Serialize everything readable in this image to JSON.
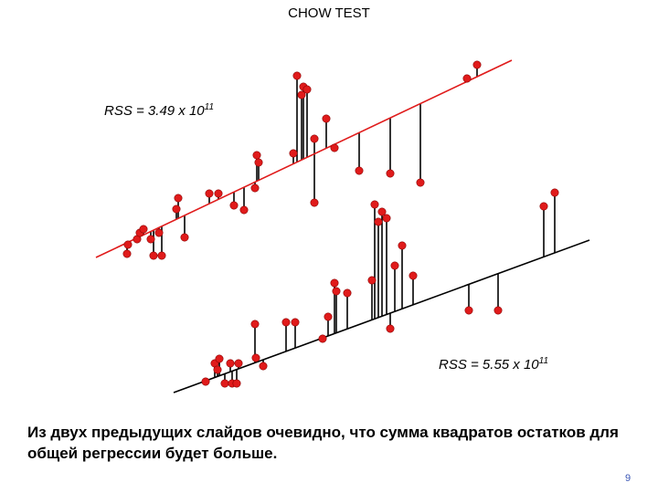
{
  "title": "CHOW TEST",
  "rss_top": {
    "prefix": "RSS = 3.49 x 10",
    "exponent": "11"
  },
  "rss_bottom": {
    "prefix": "RSS = 5.55 x 10",
    "exponent": "11"
  },
  "conclusion": "Из двух предыдущих слайдов очевидно, что сумма квадратов остатков для общей регрессии будет больше.",
  "page_number": "9",
  "colors": {
    "point": "#e01b1b",
    "pooled_line": "#e01b1b",
    "segment_line": "#000000"
  },
  "chart_data": [
    {
      "type": "scatter",
      "description_note": "pooled regression with residual lines",
      "series": [
        {
          "points": [
            [
              140,
              268
            ],
            [
              139,
              278
            ],
            [
              150,
              262
            ],
            [
              153,
              255
            ],
            [
              157,
              251
            ],
            [
              165,
              262
            ],
            [
              168,
              280
            ],
            [
              174,
              255
            ],
            [
              177,
              280
            ],
            [
              195,
              217
            ],
            [
              193,
              229
            ],
            [
              202,
              260
            ],
            [
              229,
              212
            ],
            [
              239,
              212
            ],
            [
              256,
              225
            ],
            [
              267,
              230
            ],
            [
              279,
              206
            ],
            [
              283,
              178
            ],
            [
              281,
              170
            ],
            [
              321,
              168
            ],
            [
              325,
              83
            ],
            [
              330,
              104
            ],
            [
              332,
              95
            ],
            [
              336,
              98
            ],
            [
              344,
              152
            ],
            [
              344,
              222
            ],
            [
              357,
              130
            ],
            [
              366,
              162
            ],
            [
              393,
              187
            ],
            [
              427,
              190
            ],
            [
              460,
              200
            ],
            [
              511,
              86
            ],
            [
              522,
              71
            ]
          ],
          "fit": {
            "from": [
              105,
              282
            ],
            "to": [
              560,
              66
            ]
          }
        }
      ]
    },
    {
      "type": "scatter",
      "description_note": "subsample regression with residual lines",
      "series": [
        {
          "points": [
            [
              225,
              418
            ],
            [
              235,
              398
            ],
            [
              240,
              393
            ],
            [
              238,
              405
            ],
            [
              246,
              420
            ],
            [
              252,
              398
            ],
            [
              254,
              420
            ],
            [
              261,
              398
            ],
            [
              259,
              420
            ],
            [
              288,
              401
            ],
            [
              279,
              355
            ],
            [
              280,
              392
            ],
            [
              313,
              353
            ],
            [
              323,
              353
            ],
            [
              353,
              371
            ],
            [
              359,
              347
            ],
            [
              366,
              310
            ],
            [
              368,
              319
            ],
            [
              380,
              321
            ],
            [
              407,
              307
            ],
            [
              410,
              224
            ],
            [
              414,
              243
            ],
            [
              418,
              232
            ],
            [
              423,
              239
            ],
            [
              427,
              360
            ],
            [
              440,
              269
            ],
            [
              432,
              291
            ],
            [
              452,
              302
            ],
            [
              513,
              340
            ],
            [
              545,
              340
            ],
            [
              595,
              226
            ],
            [
              607,
              211
            ]
          ],
          "fit": {
            "from": [
              190,
              430
            ],
            "to": [
              645,
              263
            ]
          }
        }
      ]
    }
  ]
}
